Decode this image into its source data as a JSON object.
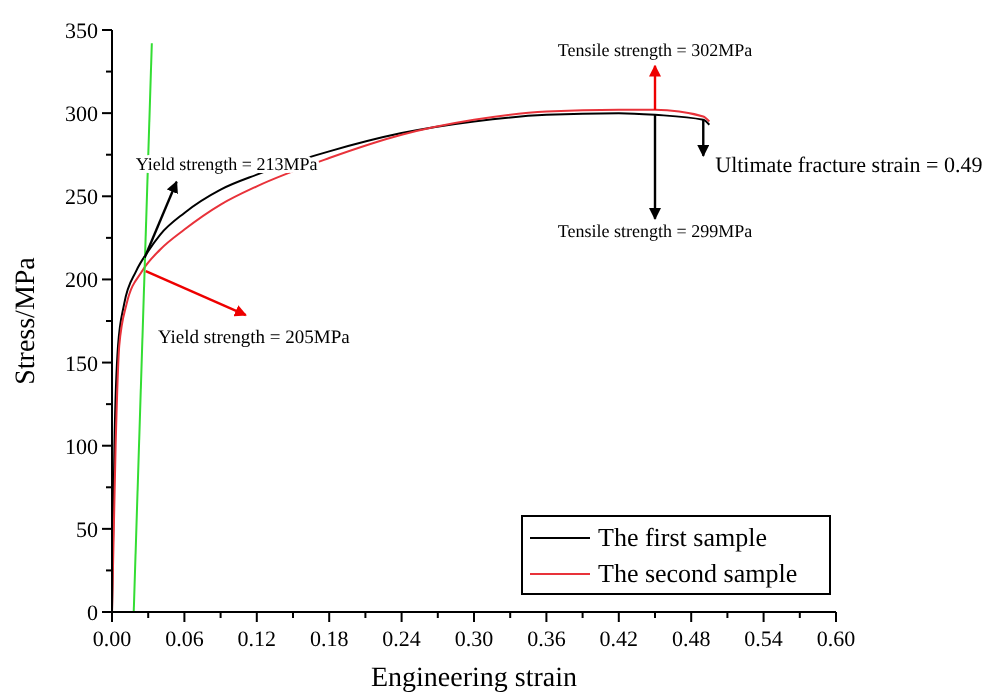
{
  "chart_data": {
    "type": "line",
    "xlabel": "Engineering strain",
    "ylabel": "Stress/MPa",
    "xlim": [
      0,
      0.6
    ],
    "xticks": [
      {
        "value": 0,
        "label": "0.00"
      },
      {
        "value": 0.06,
        "label": "0.06"
      },
      {
        "value": 0.12,
        "label": "0.12"
      },
      {
        "value": 0.18,
        "label": "0.18"
      },
      {
        "value": 0.24,
        "label": "0.24"
      },
      {
        "value": 0.3,
        "label": "0.30"
      },
      {
        "value": 0.36,
        "label": "0.36"
      },
      {
        "value": 0.42,
        "label": "0.42"
      },
      {
        "value": 0.48,
        "label": "0.48"
      },
      {
        "value": 0.54,
        "label": "0.54"
      },
      {
        "value": 0.6,
        "label": "0.60"
      }
    ],
    "ylim": [
      0,
      350
    ],
    "yticks": [
      0,
      50,
      100,
      150,
      200,
      250,
      300,
      350
    ],
    "series": [
      {
        "name": "The first sample",
        "color": "#000000",
        "x": [
          0,
          0.002,
          0.005,
          0.01,
          0.02,
          0.03,
          0.04,
          0.06,
          0.09,
          0.12,
          0.18,
          0.24,
          0.3,
          0.36,
          0.42,
          0.45,
          0.49,
          0.495
        ],
        "values": [
          0,
          100,
          160,
          185,
          205,
          217,
          227,
          240,
          254,
          263,
          277,
          288,
          295,
          299,
          300,
          299,
          296,
          293
        ]
      },
      {
        "name": "The second sample",
        "color": "#e8323a",
        "x": [
          0,
          0.003,
          0.006,
          0.012,
          0.025,
          0.04,
          0.06,
          0.09,
          0.12,
          0.18,
          0.24,
          0.3,
          0.36,
          0.42,
          0.45,
          0.49,
          0.495
        ],
        "values": [
          0,
          100,
          160,
          185,
          205,
          218,
          230,
          245,
          256,
          273,
          287,
          296,
          301,
          302,
          302,
          298,
          295
        ]
      },
      {
        "color": "#33dd33",
        "x": [
          0.018,
          0.033
        ],
        "values": [
          0,
          342
        ]
      }
    ],
    "annotations": [
      {
        "text": "Yield strength = 213MPa",
        "x": 0.027,
        "y": 213
      },
      {
        "text": "Yield strength = 205MPa",
        "x": 0.028,
        "y": 205
      },
      {
        "text": "Tensile strength = 302MPa",
        "x": 0.45,
        "y": 302
      },
      {
        "text": "Tensile strength = 299MPa",
        "x": 0.45,
        "y": 299
      },
      {
        "text": "Ultimate fracture strain = 0.49",
        "x": 0.49,
        "y": 296
      }
    ],
    "legend": "bottom right"
  }
}
